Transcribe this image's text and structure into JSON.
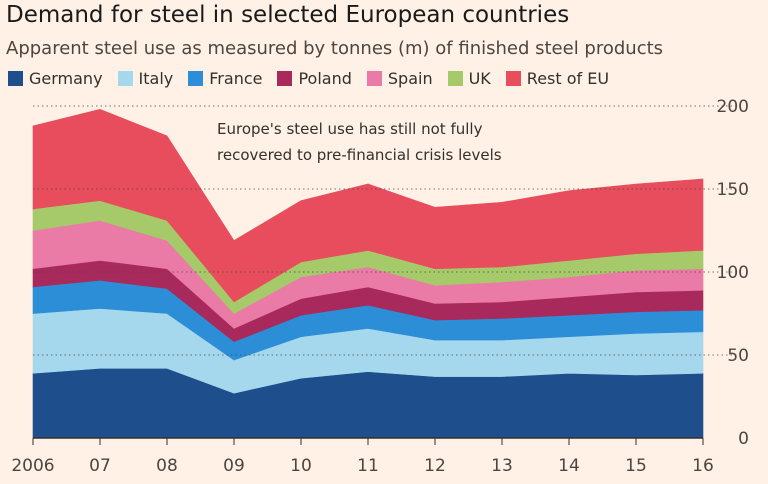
{
  "title": "Demand for steel in selected European countries",
  "subtitle": "Apparent steel use as measured by tonnes (m) of finished steel products",
  "chart_data": {
    "type": "area",
    "stacked": true,
    "title": "Demand for steel in selected European countries",
    "subtitle": "Apparent steel use as measured by tonnes (m) of finished steel products",
    "categories": [
      "2006",
      "07",
      "08",
      "09",
      "10",
      "11",
      "12",
      "13",
      "14",
      "15",
      "16"
    ],
    "ylim": [
      0,
      200
    ],
    "yticks": [
      0,
      50,
      100,
      150,
      200
    ],
    "grid": true,
    "legend_position": "top-left",
    "series": [
      {
        "name": "Germany",
        "color": "#1f4e8c",
        "values": [
          39,
          42,
          42,
          27,
          36,
          40,
          37,
          37,
          39,
          38,
          39
        ]
      },
      {
        "name": "Italy",
        "color": "#a5d8ec",
        "values": [
          36,
          36,
          33,
          20,
          25,
          26,
          22,
          22,
          22,
          25,
          25
        ]
      },
      {
        "name": "France",
        "color": "#2d8ed8",
        "values": [
          16,
          17,
          15,
          11,
          13,
          14,
          12,
          13,
          13,
          13,
          13
        ]
      },
      {
        "name": "Poland",
        "color": "#a82a5c",
        "values": [
          11,
          12,
          12,
          8,
          10,
          11,
          10,
          10,
          11,
          12,
          12
        ]
      },
      {
        "name": "Spain",
        "color": "#ea7aa6",
        "values": [
          23,
          24,
          17,
          9,
          13,
          12,
          11,
          12,
          12,
          13,
          13
        ]
      },
      {
        "name": "UK",
        "color": "#a6c96a",
        "values": [
          13,
          12,
          12,
          7,
          9,
          10,
          10,
          9,
          10,
          10,
          11
        ]
      },
      {
        "name": "Rest of EU",
        "color": "#e84d5d",
        "values": [
          50,
          55,
          51,
          37,
          37,
          40,
          37,
          39,
          42,
          42,
          43
        ]
      }
    ],
    "annotations": [
      "Europe's steel use has still not fully",
      "recovered to pre-financial crisis levels"
    ]
  }
}
